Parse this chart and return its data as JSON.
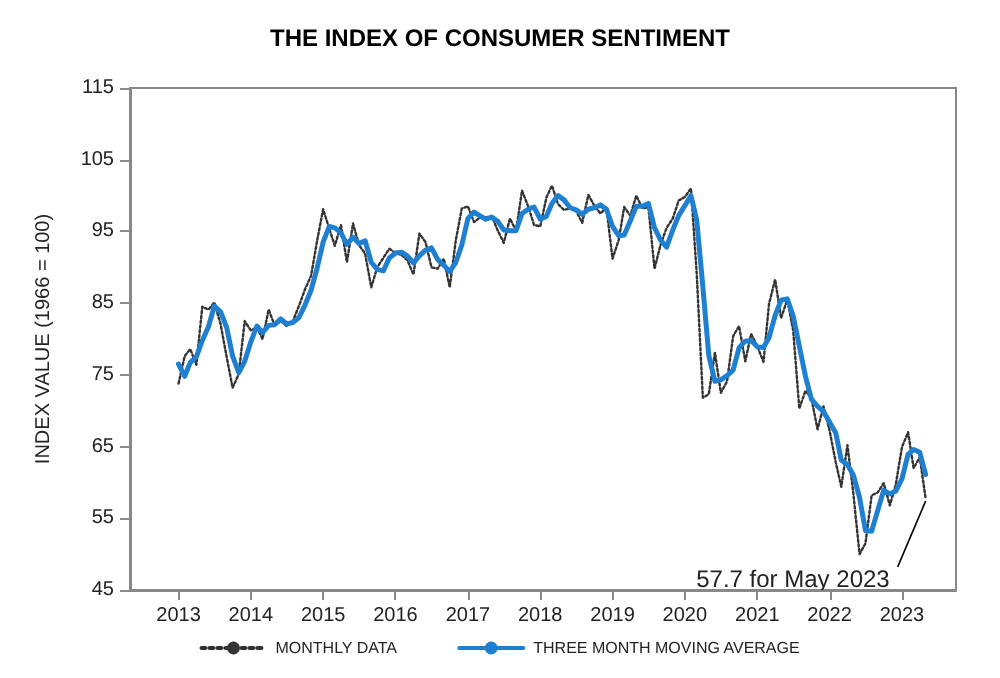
{
  "chart_data": {
    "type": "line",
    "title": "THE INDEX OF CONSUMER SENTIMENT",
    "ylabel": "INDEX VALUE (1966 = 100)",
    "x": [
      "2013-01",
      "2013-02",
      "2013-03",
      "2013-04",
      "2013-05",
      "2013-06",
      "2013-07",
      "2013-08",
      "2013-09",
      "2013-10",
      "2013-11",
      "2013-12",
      "2014-01",
      "2014-02",
      "2014-03",
      "2014-04",
      "2014-05",
      "2014-06",
      "2014-07",
      "2014-08",
      "2014-09",
      "2014-10",
      "2014-11",
      "2014-12",
      "2015-01",
      "2015-02",
      "2015-03",
      "2015-04",
      "2015-05",
      "2015-06",
      "2015-07",
      "2015-08",
      "2015-09",
      "2015-10",
      "2015-11",
      "2015-12",
      "2016-01",
      "2016-02",
      "2016-03",
      "2016-04",
      "2016-05",
      "2016-06",
      "2016-07",
      "2016-08",
      "2016-09",
      "2016-10",
      "2016-11",
      "2016-12",
      "2017-01",
      "2017-02",
      "2017-03",
      "2017-04",
      "2017-05",
      "2017-06",
      "2017-07",
      "2017-08",
      "2017-09",
      "2017-10",
      "2017-11",
      "2017-12",
      "2018-01",
      "2018-02",
      "2018-03",
      "2018-04",
      "2018-05",
      "2018-06",
      "2018-07",
      "2018-08",
      "2018-09",
      "2018-10",
      "2018-11",
      "2018-12",
      "2019-01",
      "2019-02",
      "2019-03",
      "2019-04",
      "2019-05",
      "2019-06",
      "2019-07",
      "2019-08",
      "2019-09",
      "2019-10",
      "2019-11",
      "2019-12",
      "2020-01",
      "2020-02",
      "2020-03",
      "2020-04",
      "2020-05",
      "2020-06",
      "2020-07",
      "2020-08",
      "2020-09",
      "2020-10",
      "2020-11",
      "2020-12",
      "2021-01",
      "2021-02",
      "2021-03",
      "2021-04",
      "2021-05",
      "2021-06",
      "2021-07",
      "2021-08",
      "2021-09",
      "2021-10",
      "2021-11",
      "2021-12",
      "2022-01",
      "2022-02",
      "2022-03",
      "2022-04",
      "2022-05",
      "2022-06",
      "2022-07",
      "2022-08",
      "2022-09",
      "2022-10",
      "2022-11",
      "2022-12",
      "2023-01",
      "2023-02",
      "2023-03",
      "2023-04",
      "2023-05"
    ],
    "series": [
      {
        "name": "MONTHLY DATA",
        "color": "#333333",
        "line_style": "dotted",
        "values": [
          73.8,
          77.6,
          78.6,
          76.4,
          84.5,
          84.1,
          85.1,
          82.1,
          77.5,
          73.2,
          75.1,
          82.5,
          81.2,
          81.6,
          80.0,
          84.1,
          81.9,
          82.5,
          81.8,
          82.5,
          84.6,
          86.9,
          88.8,
          93.6,
          98.1,
          95.4,
          93.0,
          95.9,
          90.7,
          96.1,
          93.1,
          91.9,
          87.2,
          90.0,
          91.3,
          92.6,
          92.0,
          91.7,
          91.0,
          89.0,
          94.7,
          93.5,
          90.0,
          89.8,
          91.2,
          87.2,
          93.8,
          98.2,
          98.5,
          96.3,
          96.9,
          97.0,
          97.1,
          95.1,
          93.4,
          96.8,
          95.1,
          100.7,
          98.5,
          95.9,
          95.7,
          99.7,
          101.4,
          98.8,
          98.0,
          98.2,
          97.9,
          96.2,
          100.1,
          98.6,
          97.5,
          98.3,
          91.2,
          93.8,
          98.4,
          97.2,
          100.0,
          98.2,
          98.4,
          89.8,
          93.2,
          95.5,
          96.8,
          99.3,
          99.8,
          101.0,
          89.1,
          71.8,
          72.3,
          78.1,
          72.5,
          74.1,
          80.4,
          81.8,
          76.9,
          80.7,
          79.0,
          76.8,
          84.9,
          88.3,
          82.9,
          85.5,
          81.2,
          70.3,
          72.8,
          71.7,
          67.4,
          70.6,
          67.2,
          62.8,
          59.4,
          65.2,
          58.4,
          50.0,
          51.5,
          58.2,
          58.6,
          59.9,
          56.8,
          59.7,
          64.9,
          67.0,
          62.0,
          63.5,
          57.7
        ]
      },
      {
        "name": "THREE MONTH MOVING AVERAGE",
        "color": "#1f7fd0",
        "line_style": "solid",
        "values": [
          76.5,
          74.8,
          76.7,
          77.5,
          79.8,
          81.7,
          84.6,
          83.8,
          81.6,
          77.6,
          75.3,
          76.9,
          79.6,
          81.8,
          80.9,
          81.9,
          82.0,
          82.8,
          82.1,
          82.3,
          83.0,
          84.7,
          86.8,
          89.8,
          93.5,
          95.7,
          95.5,
          94.8,
          93.2,
          94.2,
          93.3,
          93.7,
          90.7,
          89.7,
          89.5,
          91.3,
          92.0,
          92.1,
          91.6,
          90.6,
          91.6,
          92.4,
          92.7,
          91.1,
          90.3,
          89.4,
          90.7,
          93.1,
          96.8,
          97.7,
          97.2,
          96.7,
          97.0,
          96.4,
          95.2,
          95.1,
          95.1,
          97.5,
          98.1,
          98.4,
          96.7,
          97.1,
          98.9,
          100.0,
          99.4,
          98.3,
          98.0,
          97.4,
          98.1,
          98.3,
          98.7,
          98.1,
          95.7,
          94.4,
          94.5,
          96.5,
          98.5,
          98.5,
          98.9,
          95.5,
          93.8,
          92.8,
          95.2,
          97.2,
          98.6,
          100.0,
          96.6,
          87.3,
          77.7,
          74.1,
          74.3,
          74.9,
          75.7,
          78.8,
          79.7,
          79.8,
          78.9,
          78.8,
          80.2,
          83.3,
          85.4,
          85.6,
          83.2,
          79.0,
          74.8,
          71.6,
          70.6,
          69.9,
          68.4,
          66.9,
          63.1,
          62.5,
          61.0,
          57.9,
          53.3,
          53.2,
          56.1,
          58.9,
          58.4,
          58.8,
          60.5,
          63.9,
          64.6,
          64.2,
          61.1
        ]
      }
    ],
    "xlim": [
      "2012-05",
      "2023-10"
    ],
    "xticks": [
      {
        "value": "2013",
        "label": "2013"
      },
      {
        "value": "2014",
        "label": "2014"
      },
      {
        "value": "2015",
        "label": "2015"
      },
      {
        "value": "2016",
        "label": "2016"
      },
      {
        "value": "2017",
        "label": "2017"
      },
      {
        "value": "2018",
        "label": "2018"
      },
      {
        "value": "2019",
        "label": "2019"
      },
      {
        "value": "2020",
        "label": "2020"
      },
      {
        "value": "2021",
        "label": "2021"
      },
      {
        "value": "2022",
        "label": "2022"
      },
      {
        "value": "2023",
        "label": "2023"
      }
    ],
    "ylim": [
      45,
      115
    ],
    "yticks": [
      45,
      55,
      65,
      75,
      85,
      95,
      105,
      115
    ],
    "annotations": [
      {
        "text": "57.7 for May 2023",
        "x": "2023-05",
        "y": 57.7
      }
    ],
    "grid": false,
    "legend": "bottom",
    "marker": "none"
  }
}
